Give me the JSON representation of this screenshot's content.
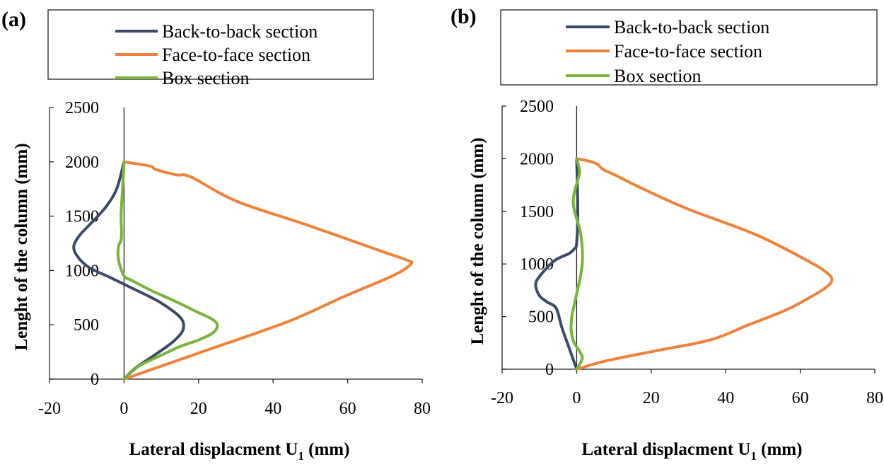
{
  "chart_data": [
    {
      "panel_label": "(a)",
      "type": "line",
      "xlabel": "Lateral displacment U",
      "xlabel_sub": "1",
      "xlabel_unit": " (mm)",
      "ylabel": "Lenght of the column (mm)",
      "xlim": [
        -20,
        80
      ],
      "ylim": [
        0,
        2500
      ],
      "xticks": [
        -20,
        0,
        20,
        40,
        60,
        80
      ],
      "yticks": [
        0,
        500,
        1000,
        1500,
        2000,
        2500
      ],
      "grid": false,
      "legend": "top",
      "series": [
        {
          "name": "Back-to-back section",
          "color": "#3b4a66",
          "points": [
            [
              0,
              0
            ],
            [
              3,
              100
            ],
            [
              9,
              240
            ],
            [
              13,
              340
            ],
            [
              15.5,
              430
            ],
            [
              16,
              500
            ],
            [
              15.3,
              560
            ],
            [
              13,
              630
            ],
            [
              8.5,
              730
            ],
            [
              2,
              840
            ],
            [
              -4,
              940
            ],
            [
              -9.5,
              1030
            ],
            [
              -12.5,
              1130
            ],
            [
              -13.5,
              1220
            ],
            [
              -12,
              1320
            ],
            [
              -9,
              1430
            ],
            [
              -5,
              1580
            ],
            [
              -2,
              1750
            ],
            [
              0,
              2000
            ]
          ]
        },
        {
          "name": "Face-to-face section",
          "color": "#f0813a",
          "points": [
            [
              0,
              0
            ],
            [
              20,
              240
            ],
            [
              44,
              530
            ],
            [
              59,
              760
            ],
            [
              72,
              950
            ],
            [
              77,
              1060
            ],
            [
              75.5,
              1100
            ],
            [
              68,
              1190
            ],
            [
              49,
              1420
            ],
            [
              30,
              1640
            ],
            [
              18,
              1860
            ],
            [
              14,
              1880
            ],
            [
              8.5,
              1930
            ],
            [
              7,
              1960
            ],
            [
              0,
              2000
            ]
          ]
        },
        {
          "name": "Box section",
          "color": "#78b43c",
          "points": [
            [
              0,
              0
            ],
            [
              4,
              120
            ],
            [
              10,
              220
            ],
            [
              15,
              300
            ],
            [
              20,
              360
            ],
            [
              24,
              430
            ],
            [
              25,
              500
            ],
            [
              23.5,
              555
            ],
            [
              19.5,
              620
            ],
            [
              13.5,
              720
            ],
            [
              7,
              820
            ],
            [
              2,
              910
            ],
            [
              0,
              950
            ],
            [
              -1.5,
              1100
            ],
            [
              -1.5,
              1220
            ],
            [
              -0.7,
              1300
            ],
            [
              -0.8,
              1500
            ],
            [
              -0.5,
              1700
            ],
            [
              0,
              2000
            ]
          ]
        }
      ]
    },
    {
      "panel_label": "(b)",
      "type": "line",
      "xlabel": "Lateral displacment U",
      "xlabel_sub": "1",
      "xlabel_unit": " (mm)",
      "ylabel": "Lenght of the column (mm)",
      "xlim": [
        -20,
        80
      ],
      "ylim": [
        0,
        2500
      ],
      "xticks": [
        -20,
        0,
        20,
        40,
        60,
        80
      ],
      "yticks": [
        0,
        500,
        1000,
        1500,
        2000,
        2500
      ],
      "grid": false,
      "legend": "top",
      "series": [
        {
          "name": "Back-to-back section",
          "color": "#3b4a66",
          "points": [
            [
              0,
              0
            ],
            [
              -2,
              200
            ],
            [
              -4,
              400
            ],
            [
              -5.5,
              580
            ],
            [
              -8,
              640
            ],
            [
              -10,
              700
            ],
            [
              -11,
              800
            ],
            [
              -10,
              880
            ],
            [
              -6,
              1030
            ],
            [
              -2,
              1100
            ],
            [
              -0.5,
              1150
            ],
            [
              0,
              1200
            ],
            [
              0.3,
              1500
            ],
            [
              0,
              2000
            ]
          ]
        },
        {
          "name": "Face-to-face section",
          "color": "#f0813a",
          "points": [
            [
              0,
              0
            ],
            [
              8,
              80
            ],
            [
              22,
              180
            ],
            [
              36,
              280
            ],
            [
              46,
              420
            ],
            [
              56,
              560
            ],
            [
              63,
              690
            ],
            [
              67,
              780
            ],
            [
              68.5,
              850
            ],
            [
              67,
              920
            ],
            [
              62,
              1030
            ],
            [
              48,
              1280
            ],
            [
              30,
              1520
            ],
            [
              18,
              1710
            ],
            [
              10,
              1850
            ],
            [
              7,
              1900
            ],
            [
              5.5,
              1950
            ],
            [
              3,
              1980
            ],
            [
              0,
              2000
            ]
          ]
        },
        {
          "name": "Box section",
          "color": "#78b43c",
          "points": [
            [
              0,
              0
            ],
            [
              1.5,
              100
            ],
            [
              0.8,
              170
            ],
            [
              -0.8,
              260
            ],
            [
              -1.5,
              380
            ],
            [
              -1.3,
              500
            ],
            [
              -0.6,
              620
            ],
            [
              0.2,
              750
            ],
            [
              0.9,
              860
            ],
            [
              1.5,
              1000
            ],
            [
              1.5,
              1150
            ],
            [
              1,
              1300
            ],
            [
              0,
              1430
            ],
            [
              -0.8,
              1540
            ],
            [
              -0.8,
              1650
            ],
            [
              0,
              1760
            ],
            [
              0.8,
              1870
            ],
            [
              0.4,
              1950
            ],
            [
              0,
              2000
            ]
          ]
        }
      ]
    }
  ]
}
